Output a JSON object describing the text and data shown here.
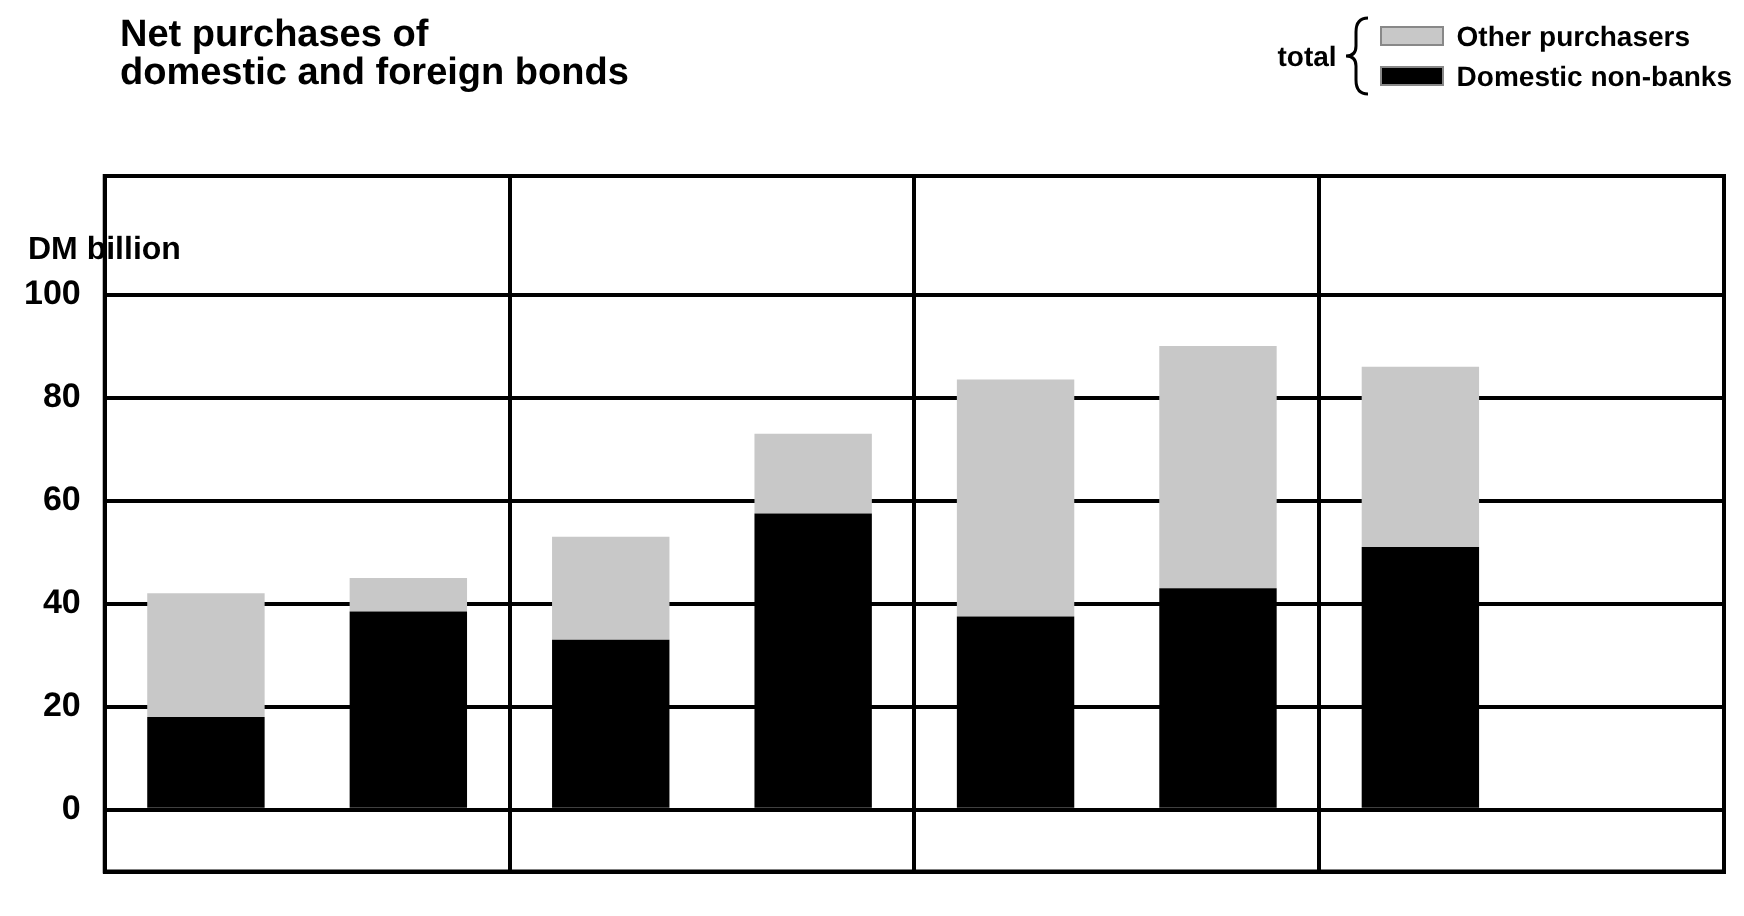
{
  "chart_data": {
    "type": "bar",
    "title": "Net purchases of\ndomestic and foreign bonds",
    "ylabel": "DM billion",
    "legend_title": "total",
    "categories": [
      null,
      null,
      null,
      null,
      null,
      null,
      null,
      null
    ],
    "stacked": true,
    "series": [
      {
        "name": "Domestic non-banks",
        "color": "#000000",
        "values": [
          18,
          38.5,
          33,
          57.5,
          37.5,
          43,
          51,
          null
        ]
      },
      {
        "name": "Other purchasers",
        "color": "#c8c8c8",
        "values": [
          24,
          6.5,
          20,
          15.5,
          46,
          47,
          35,
          null
        ]
      }
    ],
    "ylim": [
      -12,
      123
    ],
    "yticks": [
      0,
      20,
      40,
      60,
      80,
      100
    ],
    "grid": true,
    "legend": "top right",
    "tick_labels": "y"
  }
}
